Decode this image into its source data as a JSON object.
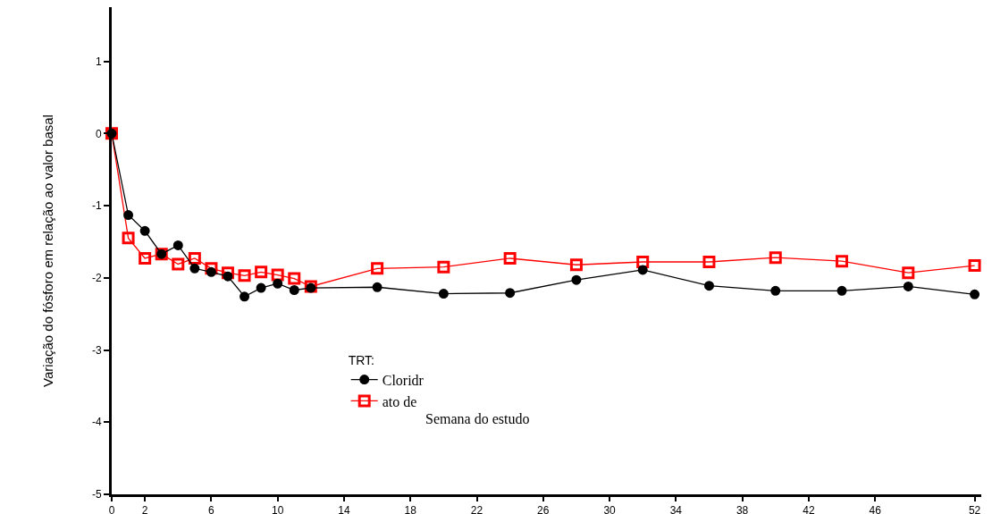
{
  "chart_data": {
    "type": "line",
    "ylabel": "Variação do fósforo em relação ao valor basal",
    "xlabel": "Semana do estudo",
    "legend_title": "TRT:",
    "x": [
      0,
      1,
      2,
      3,
      4,
      5,
      6,
      7,
      8,
      9,
      10,
      11,
      12,
      16,
      20,
      24,
      28,
      32,
      36,
      40,
      44,
      48,
      52
    ],
    "series": [
      {
        "name": "Cloridr",
        "color": "#000000",
        "marker": "circle",
        "values": [
          0,
          -1.13,
          -1.35,
          -1.67,
          -1.55,
          -1.87,
          -1.92,
          -1.98,
          -2.26,
          -2.14,
          -2.08,
          -2.17,
          -2.14,
          -2.13,
          -2.22,
          -2.21,
          -2.03,
          -1.89,
          -2.11,
          -2.18,
          -2.18,
          -2.12,
          -2.23
        ]
      },
      {
        "name": "ato de",
        "color": "#ff0000",
        "marker": "square",
        "values": [
          0,
          -1.45,
          -1.73,
          -1.67,
          -1.81,
          -1.73,
          -1.87,
          -1.93,
          -1.97,
          -1.92,
          -1.96,
          -2.01,
          -2.12,
          -1.87,
          -1.85,
          -1.73,
          -1.82,
          -1.78,
          -1.78,
          -1.72,
          -1.77,
          -1.93,
          -1.83
        ]
      }
    ],
    "xlim": [
      0,
      52.4
    ],
    "xticks": [
      0,
      2,
      6,
      10,
      14,
      18,
      22,
      26,
      30,
      34,
      38,
      42,
      46,
      52
    ],
    "ylim": [
      -5,
      1.75
    ],
    "yticks": [
      -5,
      -4,
      -3,
      -2,
      -1,
      0,
      1
    ],
    "grid": false,
    "legend": "bottom",
    "line_style": "solid"
  }
}
